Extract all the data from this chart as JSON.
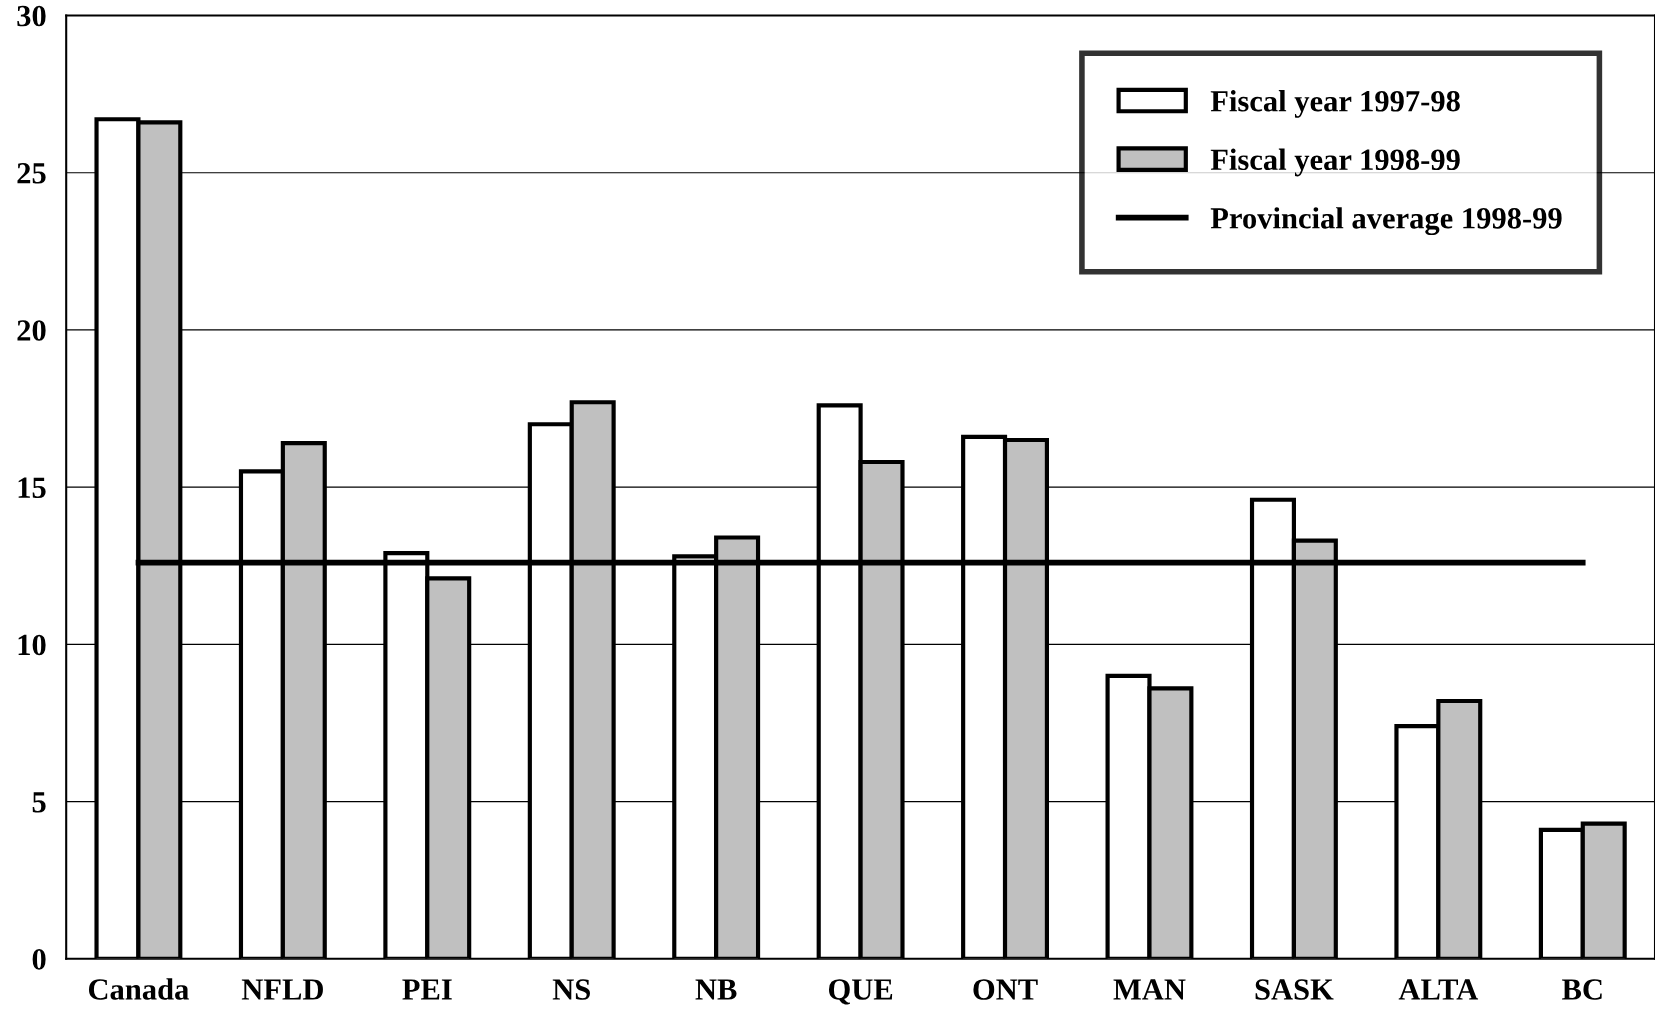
{
  "chart_data": {
    "type": "bar",
    "categories": [
      "Canada",
      "NFLD",
      "PEI",
      "NS",
      "NB",
      "QUE",
      "ONT",
      "MAN",
      "SASK",
      "ALTA",
      "BC"
    ],
    "series": [
      {
        "name": "Fiscal year 1997-98",
        "color": "#ffffff",
        "values": [
          26.7,
          15.5,
          12.9,
          17.0,
          12.8,
          17.6,
          16.6,
          9.0,
          14.6,
          7.4,
          4.1
        ]
      },
      {
        "name": "Fiscal year 1998-99",
        "color": "#c0c0c0",
        "values": [
          26.6,
          16.4,
          12.1,
          17.7,
          13.4,
          15.8,
          16.5,
          8.6,
          13.3,
          8.2,
          4.3
        ]
      },
      {
        "name": "Provincial average 1998-99",
        "type": "line",
        "color": "#000000",
        "values": [
          12.6,
          12.6,
          12.6,
          12.6,
          12.6,
          12.6,
          12.6,
          12.6,
          12.6,
          12.6,
          12.6
        ]
      }
    ],
    "ylim": [
      0,
      30
    ],
    "yticks": [
      0,
      5,
      10,
      15,
      20,
      25,
      30
    ],
    "grid": "y",
    "legend": "top right"
  }
}
